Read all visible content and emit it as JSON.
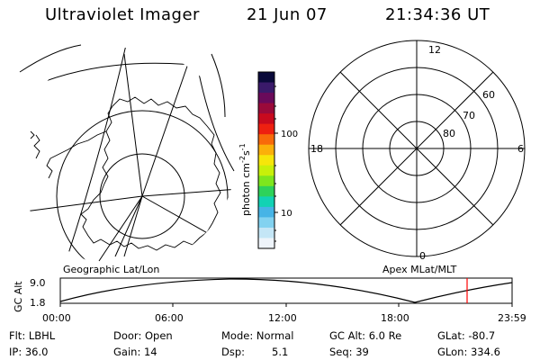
{
  "header": {
    "instrument": "Ultraviolet Imager",
    "date": "21 Jun 07",
    "time": "21:34:36 UT"
  },
  "colorbar": {
    "label": "photon cm",
    "label_exp1": "-2",
    "label_mid": "s",
    "label_exp2": "-1",
    "ticks": [
      "100",
      "10"
    ],
    "colors": [
      "#0a0a3a",
      "#3a1a6a",
      "#6a0a5a",
      "#9a0a3a",
      "#c80a1e",
      "#ee2010",
      "#f86a0a",
      "#fbb00a",
      "#f6e60a",
      "#c8f00a",
      "#7ee61e",
      "#2ed25a",
      "#12d2b4",
      "#46b4e6",
      "#82d2f0",
      "#c4e6f6",
      "#eef4fa"
    ]
  },
  "polar_plot": {
    "labels": {
      "top": "12",
      "left": "18",
      "right": "6",
      "bottom": "0"
    },
    "rings": [
      "60",
      "70",
      "80"
    ]
  },
  "timeline": {
    "left_caption": "Geographic Lat/Lon",
    "right_caption": "Apex MLat/MLT",
    "axis_label": "GC Alt",
    "y_ticks": [
      "9.0",
      "1.8"
    ],
    "x_ticks": [
      "00:00",
      "06:00",
      "12:00",
      "18:00",
      "23:59"
    ],
    "marker_color": "#ff0000"
  },
  "info": {
    "flt_label": "Flt: LBHL",
    "ip_label": "IP: 36.0",
    "door_label": "Door: Open",
    "gain_label": "Gain: 14",
    "mode_label": "Mode: Normal",
    "dsp_label": "Dsp:",
    "dsp_value": "5.1",
    "gcalt_label": "GC Alt: 6.0 Re",
    "seq_label": "Seq: 39",
    "glat_label": "GLat: -80.7",
    "glon_label": "GLon: 334.6"
  }
}
